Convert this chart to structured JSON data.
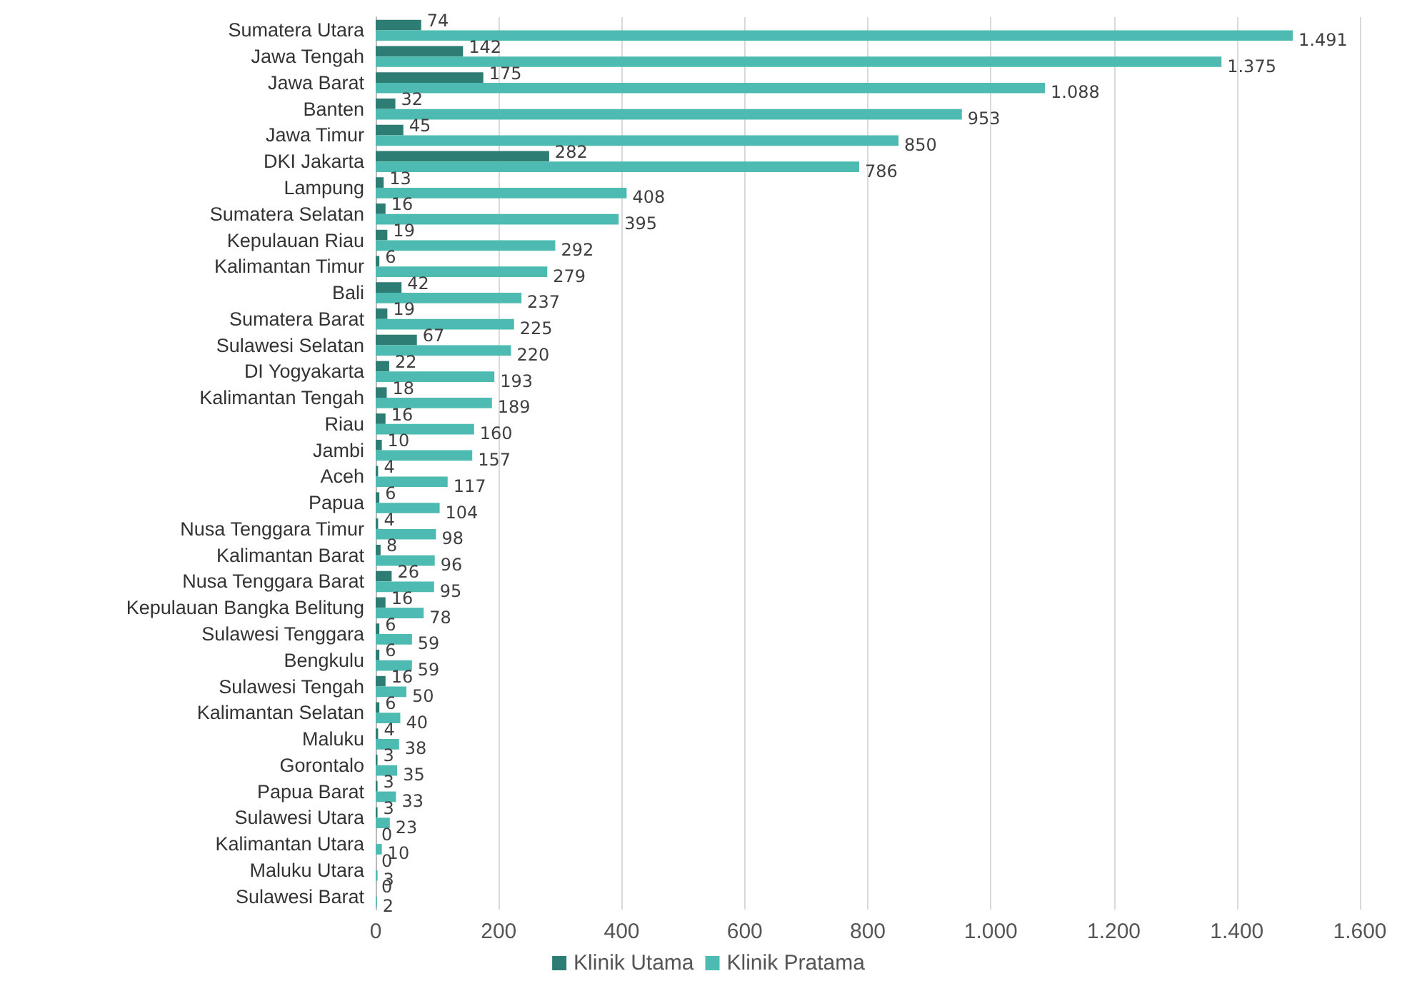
{
  "chart_data": {
    "type": "bar",
    "orientation": "horizontal",
    "categories": [
      "Sumatera Utara",
      "Jawa Tengah",
      "Jawa Barat",
      "Banten",
      "Jawa Timur",
      "DKI Jakarta",
      "Lampung",
      "Sumatera Selatan",
      "Kepulauan Riau",
      "Kalimantan Timur",
      "Bali",
      "Sumatera Barat",
      "Sulawesi Selatan",
      "DI Yogyakarta",
      "Kalimantan Tengah",
      "Riau",
      "Jambi",
      "Aceh",
      "Papua",
      "Nusa Tenggara Timur",
      "Kalimantan Barat",
      "Nusa Tenggara Barat",
      "Kepulauan Bangka Belitung",
      "Sulawesi Tenggara",
      "Bengkulu",
      "Sulawesi Tengah",
      "Kalimantan Selatan",
      "Maluku",
      "Gorontalo",
      "Papua Barat",
      "Sulawesi Utara",
      "Kalimantan Utara",
      "Maluku Utara",
      "Sulawesi Barat"
    ],
    "series": [
      {
        "name": "Klinik Utama",
        "color": "#2e7d74",
        "values": [
          74,
          142,
          175,
          32,
          45,
          282,
          13,
          16,
          19,
          6,
          42,
          19,
          67,
          22,
          18,
          16,
          10,
          4,
          6,
          4,
          8,
          26,
          16,
          6,
          6,
          16,
          6,
          4,
          3,
          3,
          3,
          0,
          0,
          0
        ]
      },
      {
        "name": "Klinik Pratama",
        "color": "#4dbbb1",
        "values": [
          1491,
          1375,
          1088,
          953,
          850,
          786,
          408,
          395,
          292,
          279,
          237,
          225,
          220,
          193,
          189,
          160,
          157,
          117,
          104,
          98,
          96,
          95,
          78,
          59,
          59,
          50,
          40,
          38,
          35,
          33,
          23,
          10,
          3,
          2
        ],
        "value_labels": [
          "1.491",
          "1.375",
          "1.088",
          "953",
          "850",
          "786",
          "408",
          "395",
          "292",
          "279",
          "237",
          "225",
          "220",
          "193",
          "189",
          "160",
          "157",
          "117",
          "104",
          "98",
          "96",
          "95",
          "78",
          "59",
          "59",
          "50",
          "40",
          "38",
          "35",
          "33",
          "23",
          "10",
          "3",
          "2"
        ]
      }
    ],
    "data_labels": true,
    "xlim": [
      0,
      1600
    ],
    "xticks": [
      0,
      200,
      400,
      600,
      800,
      {
        "value": 1000,
        "label": "1.000"
      },
      {
        "value": 1200,
        "label": "1.200"
      },
      {
        "value": 1400,
        "label": "1.400"
      },
      {
        "value": 1600,
        "label": "1.600"
      }
    ],
    "grid": "x",
    "legend": "bottom"
  }
}
